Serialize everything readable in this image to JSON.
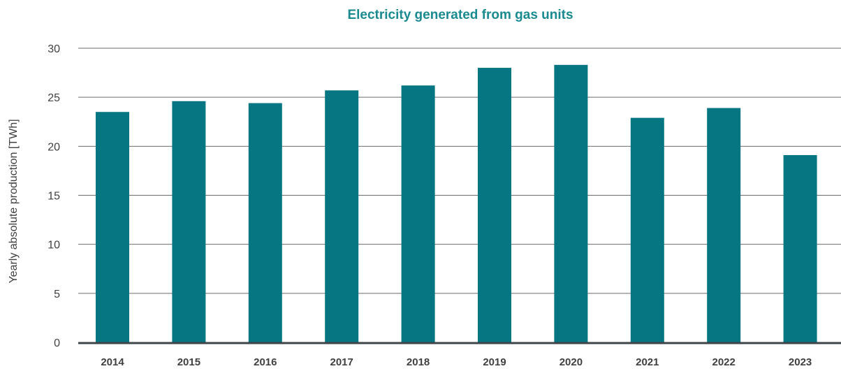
{
  "chart_data": {
    "type": "bar",
    "title": "Electricity generated from gas units",
    "xlabel": "",
    "ylabel": "Yearly absolute production [TWh]",
    "categories": [
      "2014",
      "2015",
      "2016",
      "2017",
      "2018",
      "2019",
      "2020",
      "2021",
      "2022",
      "2023"
    ],
    "values": [
      23.5,
      24.6,
      24.4,
      25.7,
      26.2,
      28.0,
      28.3,
      22.9,
      23.9,
      19.1
    ],
    "ylim": [
      0,
      30
    ],
    "yticks": [
      "0",
      "5",
      "10",
      "15",
      "20",
      "25",
      "30"
    ],
    "grid": true,
    "legend": "none",
    "colors": {
      "bar": "#077683",
      "title": "#1a8a91",
      "grid": "#6b6b6b",
      "baseline": "#3e4448",
      "text": "#404040"
    }
  }
}
